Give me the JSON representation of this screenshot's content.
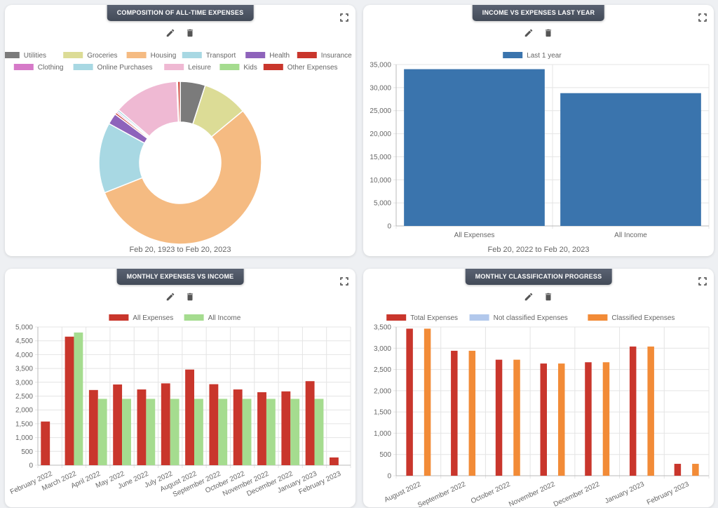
{
  "colors": {
    "card_title_bg": "#4b5563",
    "red": "#c9362c",
    "green": "#a5dc8f",
    "blue": "#3a74ad",
    "orange": "#f28b37",
    "light_blue": "#b2c8ec"
  },
  "icons": {
    "edit": "pencil-icon",
    "delete": "trash-icon",
    "expand": "expand-icon"
  },
  "cards": [
    {
      "title": "COMPOSITION OF ALL-TIME EXPENSES",
      "subtitle": "Feb 20, 1923 to Feb 20, 2023"
    },
    {
      "title": "INCOME VS EXPENSES LAST YEAR",
      "subtitle": "Feb 20, 2022 to Feb 20, 2023"
    },
    {
      "title": "MONTHLY EXPENSES VS INCOME",
      "subtitle": ""
    },
    {
      "title": "MONTHLY CLASSIFICATION PROGRESS",
      "subtitle": ""
    }
  ],
  "chart_data": [
    {
      "type": "pie",
      "donut": true,
      "title": "COMPOSITION OF ALL-TIME EXPENSES",
      "legend_position": "top",
      "labels": [
        "Utilities",
        "Groceries",
        "Housing",
        "Transport",
        "Health",
        "Insurance",
        "Clothing",
        "Online Purchases",
        "Leisure",
        "Kids",
        "Other Expenses"
      ],
      "values": [
        5,
        9,
        55,
        14,
        2.2,
        0.4,
        0.3,
        0.4,
        13,
        0.2,
        0.5
      ],
      "colors": [
        "#7b7b7b",
        "#dcdc96",
        "#f5bb82",
        "#a8d8e3",
        "#8e63bb",
        "#c9362c",
        "#d67ac8",
        "#a8d8e3",
        "#efb9d3",
        "#a5dc8f",
        "#c9362c"
      ]
    },
    {
      "type": "bar",
      "title": "INCOME VS EXPENSES LAST YEAR",
      "categories": [
        "All Expenses",
        "All Income"
      ],
      "series": [
        {
          "name": "Last 1 year",
          "values": [
            34000,
            28800
          ],
          "color": "#3a74ad"
        }
      ],
      "ylim": [
        0,
        35000
      ],
      "yticks": [
        0,
        5000,
        10000,
        15000,
        20000,
        25000,
        30000,
        35000
      ],
      "ytick_labels": [
        "0",
        "5,000",
        "10,000",
        "15,000",
        "20,000",
        "25,000",
        "30,000",
        "35,000"
      ],
      "grid": true,
      "legend_position": "top"
    },
    {
      "type": "bar",
      "title": "MONTHLY EXPENSES VS INCOME",
      "categories": [
        "February 2022",
        "March 2022",
        "April 2022",
        "May 2022",
        "June 2022",
        "July 2022",
        "August 2022",
        "September 2022",
        "October 2022",
        "November 2022",
        "December 2022",
        "January 2023",
        "February 2023"
      ],
      "series": [
        {
          "name": "All Expenses",
          "values": [
            1580,
            4650,
            2720,
            2920,
            2740,
            2960,
            3460,
            2930,
            2740,
            2640,
            2670,
            3040,
            280
          ],
          "color": "#c9362c"
        },
        {
          "name": "All Income",
          "values": [
            0,
            4800,
            2400,
            2400,
            2400,
            2400,
            2400,
            2400,
            2400,
            2400,
            2400,
            2400,
            0
          ],
          "color": "#a5dc8f"
        }
      ],
      "ylim": [
        0,
        5000
      ],
      "yticks": [
        0,
        500,
        1000,
        1500,
        2000,
        2500,
        3000,
        3500,
        4000,
        4500,
        5000
      ],
      "ytick_labels": [
        "0",
        "500",
        "1,000",
        "1,500",
        "2,000",
        "2,500",
        "3,000",
        "3,500",
        "4,000",
        "4,500",
        "5,000"
      ],
      "grid": true,
      "legend_position": "top"
    },
    {
      "type": "bar",
      "title": "MONTHLY CLASSIFICATION PROGRESS",
      "categories": [
        "August 2022",
        "September 2022",
        "October 2022",
        "November 2022",
        "December 2022",
        "January 2023",
        "February 2023"
      ],
      "series": [
        {
          "name": "Total Expenses",
          "values": [
            3460,
            2940,
            2730,
            2640,
            2670,
            3040,
            280
          ],
          "color": "#c9362c"
        },
        {
          "name": "Not classified Expenses",
          "values": [
            0,
            0,
            0,
            0,
            0,
            0,
            0
          ],
          "color": "#b2c8ec"
        },
        {
          "name": "Classified Expenses",
          "values": [
            3460,
            2940,
            2730,
            2640,
            2670,
            3040,
            280
          ],
          "color": "#f28b37"
        }
      ],
      "ylim": [
        0,
        3500
      ],
      "yticks": [
        0,
        500,
        1000,
        1500,
        2000,
        2500,
        3000,
        3500
      ],
      "ytick_labels": [
        "0",
        "500",
        "1,000",
        "1,500",
        "2,000",
        "2,500",
        "3,000",
        "3,500"
      ],
      "grid": true,
      "legend_position": "top"
    }
  ]
}
